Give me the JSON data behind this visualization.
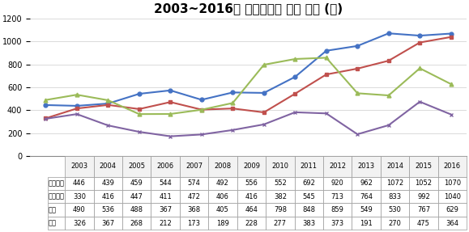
{
  "title": "2003~2016년 공무원범죄 발생 현황 (건)",
  "years": [
    2003,
    2004,
    2005,
    2006,
    2007,
    2008,
    2009,
    2010,
    2011,
    2012,
    2013,
    2014,
    2015,
    2016
  ],
  "series": [
    {
      "name": "직무유기",
      "color": "#4472C4",
      "marker": "o",
      "values": [
        446,
        439,
        459,
        544,
        574,
        492,
        556,
        552,
        692,
        920,
        962,
        1072,
        1052,
        1070
      ]
    },
    {
      "name": "직권남용",
      "color": "#C0504D",
      "marker": "s",
      "values": [
        330,
        416,
        447,
        411,
        472,
        406,
        416,
        382,
        545,
        713,
        764,
        833,
        992,
        1040
      ]
    },
    {
      "name": "수룰",
      "color": "#9BBB59",
      "marker": "^",
      "values": [
        490,
        536,
        488,
        367,
        368,
        405,
        464,
        798,
        848,
        859,
        549,
        530,
        767,
        629
      ]
    },
    {
      "name": "증룰",
      "color": "#8064A2",
      "marker": "x",
      "values": [
        326,
        367,
        268,
        212,
        173,
        189,
        228,
        277,
        383,
        373,
        191,
        270,
        475,
        364
      ]
    }
  ],
  "ylim": [
    0,
    1200
  ],
  "yticks": [
    0,
    200,
    400,
    600,
    800,
    1000,
    1200
  ],
  "grid_color": "#CCCCCC",
  "fig_width": 5.79,
  "fig_height": 2.87,
  "dpi": 100
}
